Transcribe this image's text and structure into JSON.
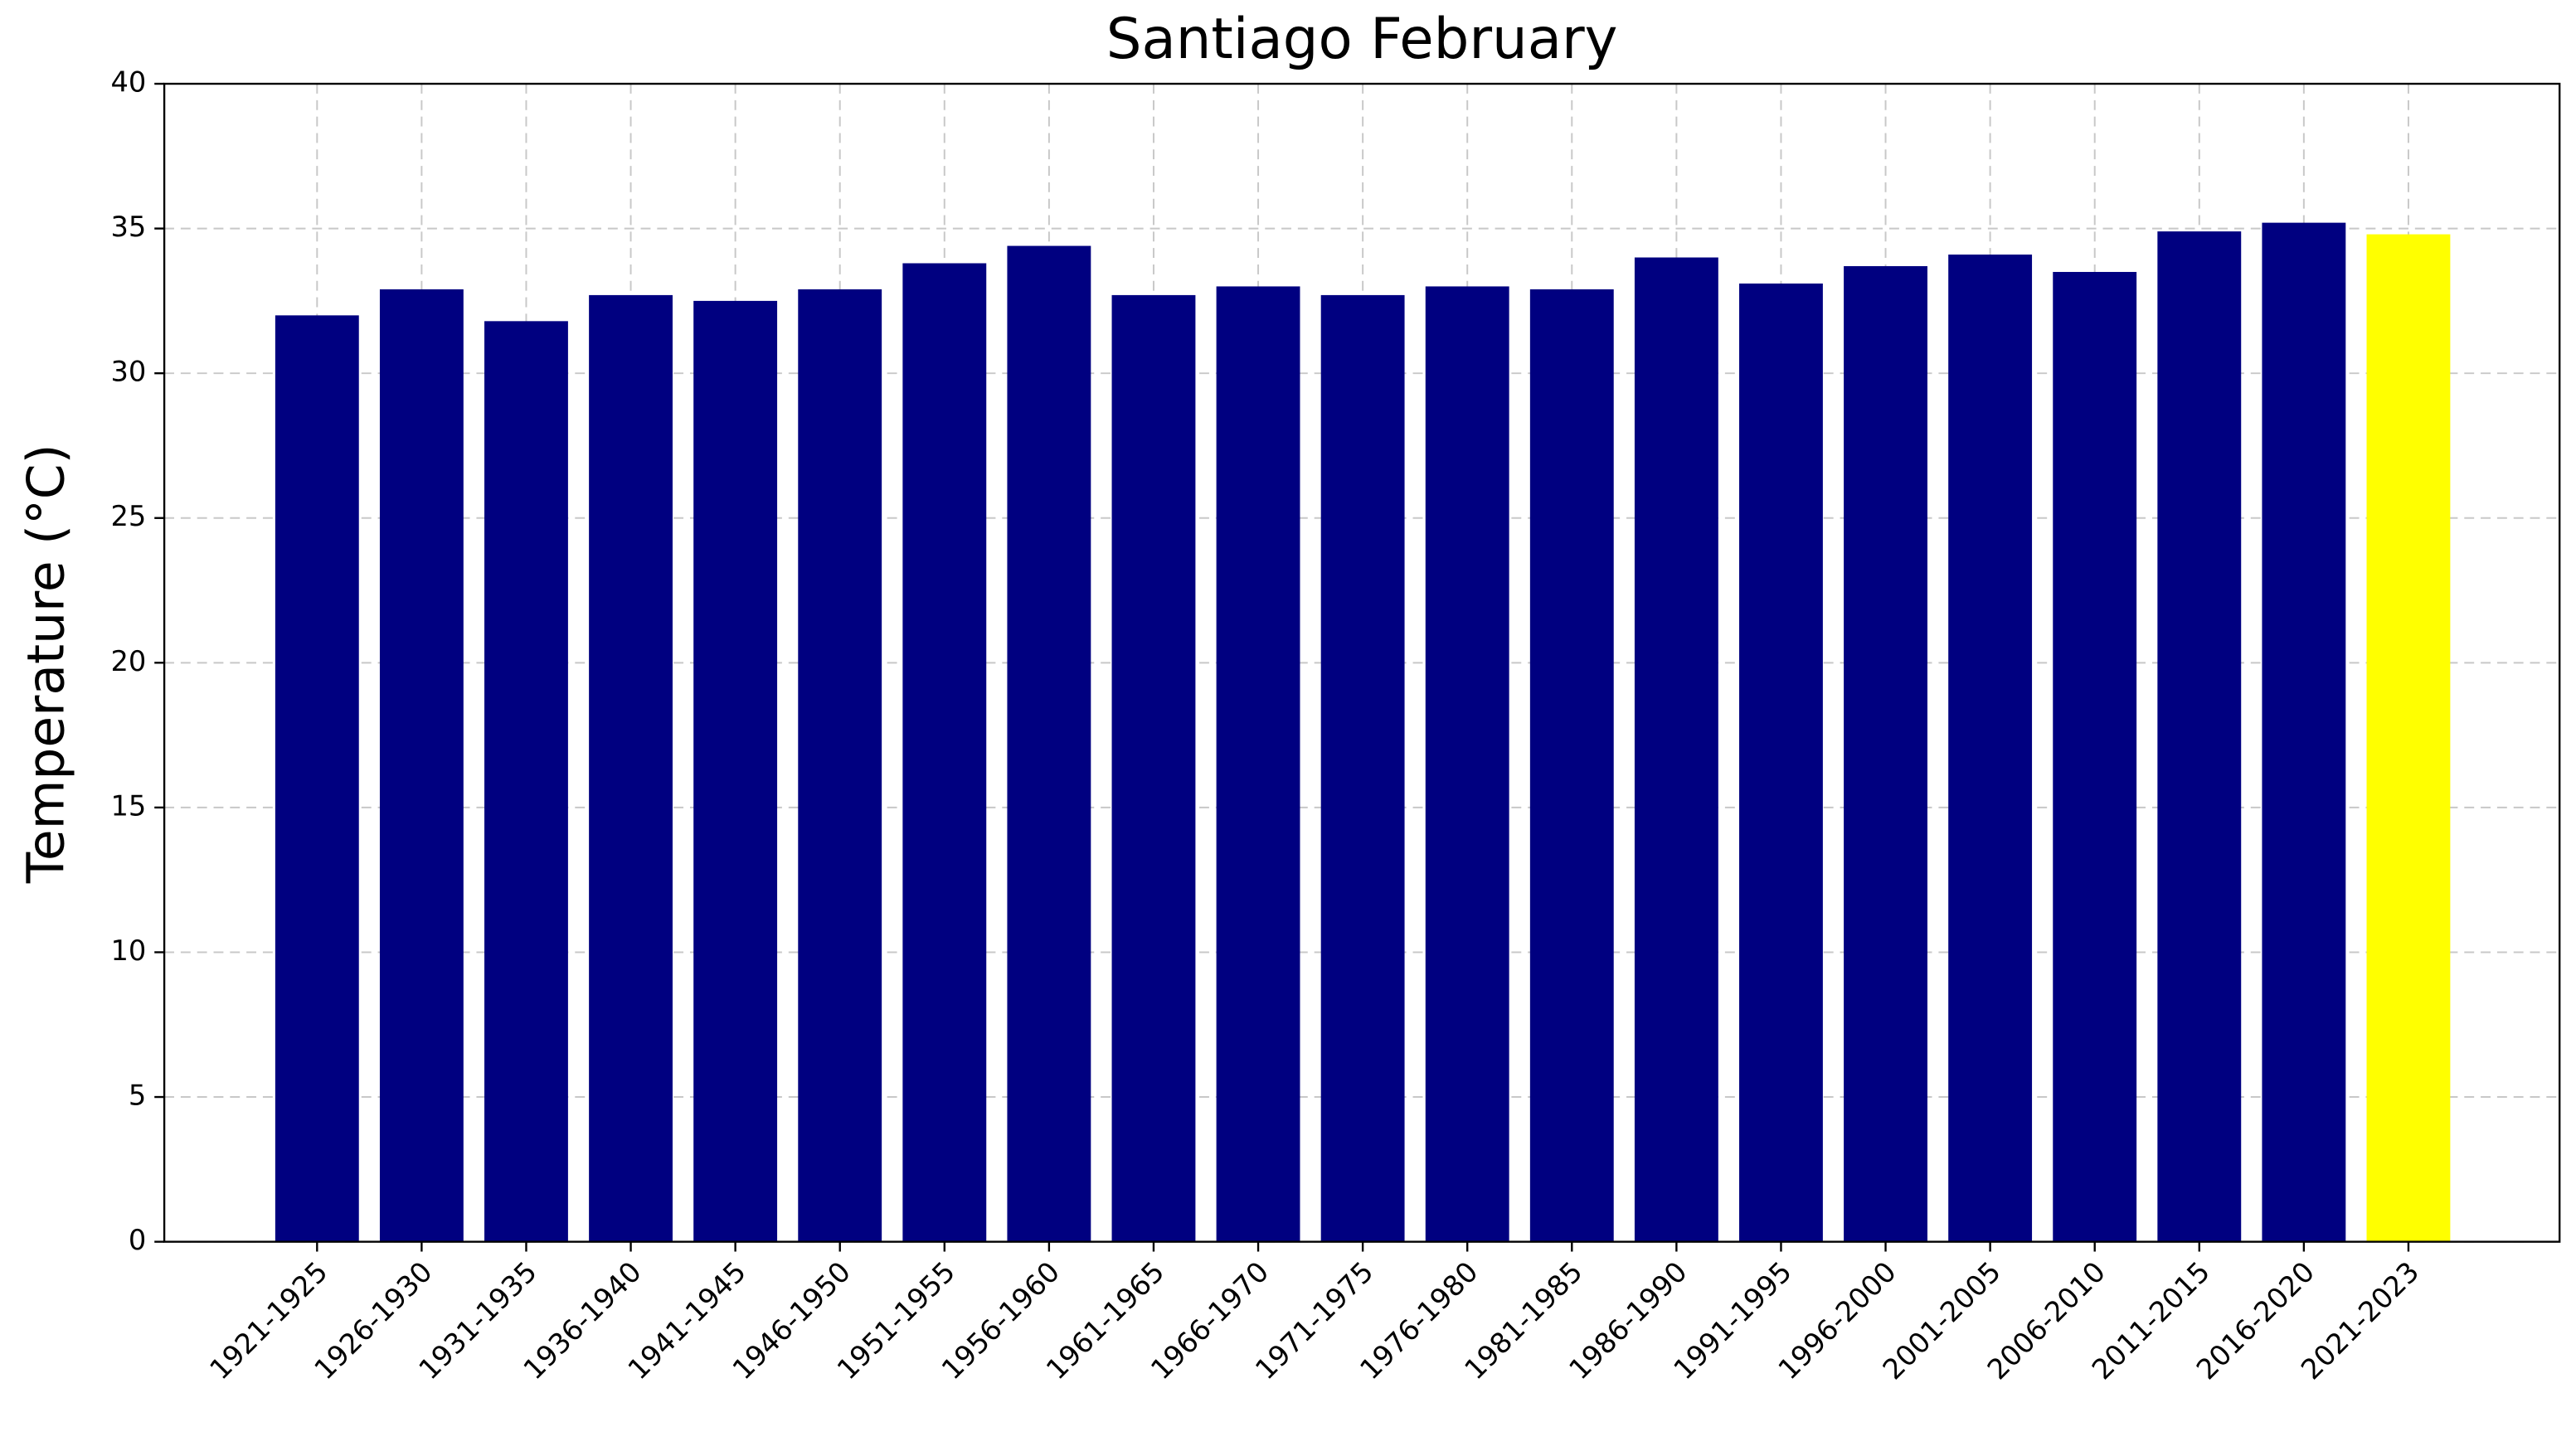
{
  "chart_data": {
    "type": "bar",
    "title": "Santiago February",
    "y_label": "Temperature (°C)",
    "categories": [
      "1921-1925",
      "1926-1930",
      "1931-1935",
      "1936-1940",
      "1941-1945",
      "1946-1950",
      "1951-1955",
      "1956-1960",
      "1961-1965",
      "1966-1970",
      "1971-1975",
      "1976-1980",
      "1981-1985",
      "1986-1990",
      "1991-1995",
      "1996-2000",
      "2001-2005",
      "2006-2010",
      "2011-2015",
      "2016-2020",
      "2021-2023"
    ],
    "values": [
      32.0,
      32.9,
      31.8,
      32.7,
      32.5,
      32.9,
      33.8,
      34.4,
      32.7,
      33.0,
      32.7,
      33.0,
      32.9,
      34.0,
      33.1,
      33.7,
      34.1,
      33.5,
      34.9,
      35.2,
      34.8
    ],
    "colors": [
      "#000080",
      "#000080",
      "#000080",
      "#000080",
      "#000080",
      "#000080",
      "#000080",
      "#000080",
      "#000080",
      "#000080",
      "#000080",
      "#000080",
      "#000080",
      "#000080",
      "#000080",
      "#000080",
      "#000080",
      "#000080",
      "#000080",
      "#000080",
      "#ffff00"
    ],
    "ylim": [
      0,
      40
    ],
    "yticks": [
      0,
      5,
      10,
      15,
      20,
      25,
      30,
      35,
      40
    ],
    "grid": true
  }
}
